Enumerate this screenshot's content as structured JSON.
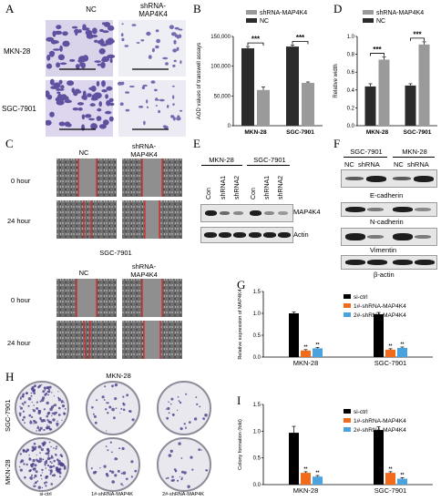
{
  "panels": {
    "A": {
      "letter": "A",
      "col_labels": [
        "NC",
        "shRNA-\nMAP4K4"
      ],
      "row_labels": [
        "MKN-28",
        "SGC-7901"
      ]
    },
    "B": {
      "letter": "B",
      "legend": [
        "shRNA-MAP4K4",
        "NC"
      ]
    },
    "C": {
      "letter": "C",
      "top_cols": [
        "NC",
        "shRNA-\nMAP4K4"
      ],
      "top_rows": [
        "0 hour",
        "24 hour"
      ],
      "bottom_title": "SGC-7901",
      "bottom_cols": [
        "NC",
        "shRNA-\nMAP4K4"
      ],
      "bottom_rows": [
        "0 hour",
        "24 hour"
      ]
    },
    "D": {
      "letter": "D",
      "legend": [
        "shRNA-MAP4K4",
        "NC"
      ]
    },
    "E": {
      "letter": "E",
      "groups": [
        "MKN-28",
        "SGC-7901"
      ],
      "lanes": [
        "Con",
        "shRNA1",
        "shRNA2",
        "Con",
        "shRNA1",
        "shRNA2"
      ],
      "proteins": [
        "MAP4K4",
        "Actin"
      ]
    },
    "F": {
      "letter": "F",
      "groups": [
        "SGC-7901",
        "MKN-28"
      ],
      "lanes": [
        "NC",
        "shRNA",
        "NC",
        "shRNA"
      ],
      "proteins": [
        "E-cadherin",
        "N-cadherin",
        "Vimentin",
        "β-actin"
      ]
    },
    "G": {
      "letter": "G"
    },
    "H": {
      "letter": "H",
      "title": "MKN-28",
      "row_labels": [
        "SGC-7901",
        "MKN-28"
      ],
      "col_labels": [
        "si-ctrl",
        "1#-shRNA-MAP4K",
        "2#-shRNA-MAP4K"
      ]
    },
    "I": {
      "letter": "I"
    }
  },
  "chart_data": [
    {
      "id": "B",
      "type": "bar",
      "ylabel": "AOD values of transwell assays",
      "categories": [
        "MKN-28",
        "SGC-7901"
      ],
      "series": [
        {
          "name": "NC",
          "values": [
            130000,
            133000
          ],
          "errors": [
            3000,
            2500
          ],
          "color": "#2b2b2b"
        },
        {
          "name": "shRNA-MAP4K4",
          "values": [
            60000,
            72000
          ],
          "errors": [
            5000,
            1500
          ],
          "color": "#9a9a9a"
        }
      ],
      "ylim": [
        0,
        150000
      ],
      "yticks": [
        "0",
        "50,000",
        "100,000",
        "150,000"
      ],
      "ytick_values": [
        0,
        50000,
        100000,
        150000
      ],
      "significance": [
        "***",
        "***"
      ]
    },
    {
      "id": "D",
      "type": "bar",
      "ylabel": "Relative width",
      "categories": [
        "MKN-28",
        "SGC-7901"
      ],
      "series": [
        {
          "name": "NC",
          "values": [
            0.44,
            0.45
          ],
          "errors": [
            0.03,
            0.02
          ],
          "color": "#2b2b2b"
        },
        {
          "name": "shRNA-MAP4K4",
          "values": [
            0.74,
            0.91
          ],
          "errors": [
            0.03,
            0.03
          ],
          "color": "#9a9a9a"
        }
      ],
      "ylim": [
        0,
        1.0
      ],
      "yticks": [
        "0.0",
        "0.2",
        "0.4",
        "0.6",
        "0.8",
        "1.0"
      ],
      "ytick_values": [
        0,
        0.2,
        0.4,
        0.6,
        0.8,
        1.0
      ],
      "significance": [
        "***",
        "***"
      ]
    },
    {
      "id": "G",
      "type": "bar",
      "ylabel": "Relative expression of MAP4K4",
      "categories": [
        "MKN-28",
        "SGC-7901"
      ],
      "series": [
        {
          "name": "si-ctrl",
          "values": [
            1.0,
            0.98
          ],
          "errors": [
            0.03,
            0.04
          ],
          "color": "#000000"
        },
        {
          "name": "1#-shRNA-MAP4K4",
          "values": [
            0.15,
            0.17
          ],
          "errors": [
            0.02,
            0.02
          ],
          "color": "#f26b1d"
        },
        {
          "name": "2#-shRNA-MAP4K4",
          "values": [
            0.2,
            0.21
          ],
          "errors": [
            0.02,
            0.02
          ],
          "color": "#4aa3df"
        }
      ],
      "ylim": [
        0,
        1.5
      ],
      "yticks": [
        "0.0",
        "0.5",
        "1.0",
        "1.5"
      ],
      "ytick_values": [
        0,
        0.5,
        1.0,
        1.5
      ],
      "significance": [
        "**",
        "**"
      ]
    },
    {
      "id": "I",
      "type": "bar",
      "ylabel": "Colony formation (fold)",
      "categories": [
        "MKN-28",
        "SGC-7901"
      ],
      "series": [
        {
          "name": "si-ctrl",
          "values": [
            0.97,
            1.02
          ],
          "errors": [
            0.12,
            0.06
          ],
          "color": "#000000"
        },
        {
          "name": "1#-shRNA-MAP4K4",
          "values": [
            0.22,
            0.22
          ],
          "errors": [
            0.02,
            0.02
          ],
          "color": "#f26b1d"
        },
        {
          "name": "2#-shRNA-MAP4K4",
          "values": [
            0.15,
            0.11
          ],
          "errors": [
            0.02,
            0.02
          ],
          "color": "#4aa3df"
        }
      ],
      "ylim": [
        0,
        1.5
      ],
      "yticks": [
        "0.0",
        "0.5",
        "1.0",
        "1.5"
      ],
      "ytick_values": [
        0,
        0.5,
        1.0,
        1.5
      ],
      "significance": [
        "**",
        "**"
      ]
    }
  ]
}
